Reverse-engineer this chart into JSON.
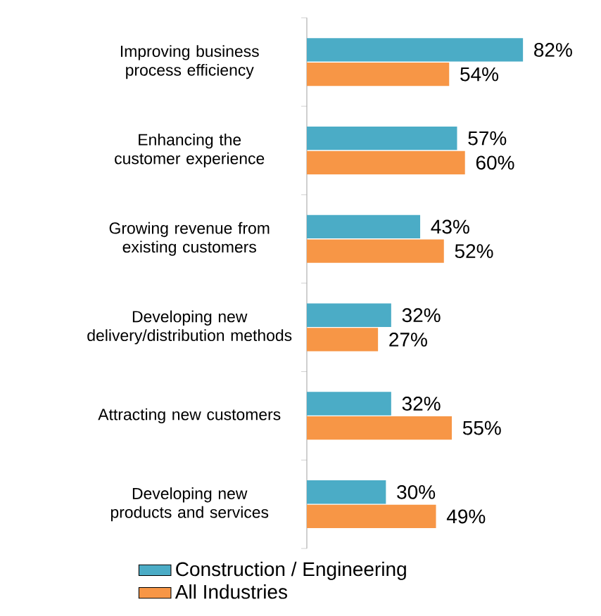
{
  "chart_data": {
    "type": "bar",
    "orientation": "horizontal",
    "categories": [
      "Improving business process efficiency",
      "Enhancing the customer experience",
      "Growing revenue from existing customers",
      "Developing new delivery/distribution methods",
      "Attracting new customers",
      "Developing new products and services"
    ],
    "series": [
      {
        "name": "Construction / Engineering",
        "color": "#4bacc6",
        "values": [
          82,
          57,
          43,
          32,
          32,
          30
        ],
        "value_labels": [
          "82%",
          "57%",
          "43%",
          "32%",
          "32%",
          "30%"
        ]
      },
      {
        "name": "All Industries",
        "color": "#f79646",
        "values": [
          54,
          60,
          52,
          27,
          55,
          49
        ],
        "value_labels": [
          "54%",
          "60%",
          "52%",
          "27%",
          "55%",
          "49%"
        ]
      }
    ],
    "legend": "bottom",
    "tick_labels": "y"
  }
}
